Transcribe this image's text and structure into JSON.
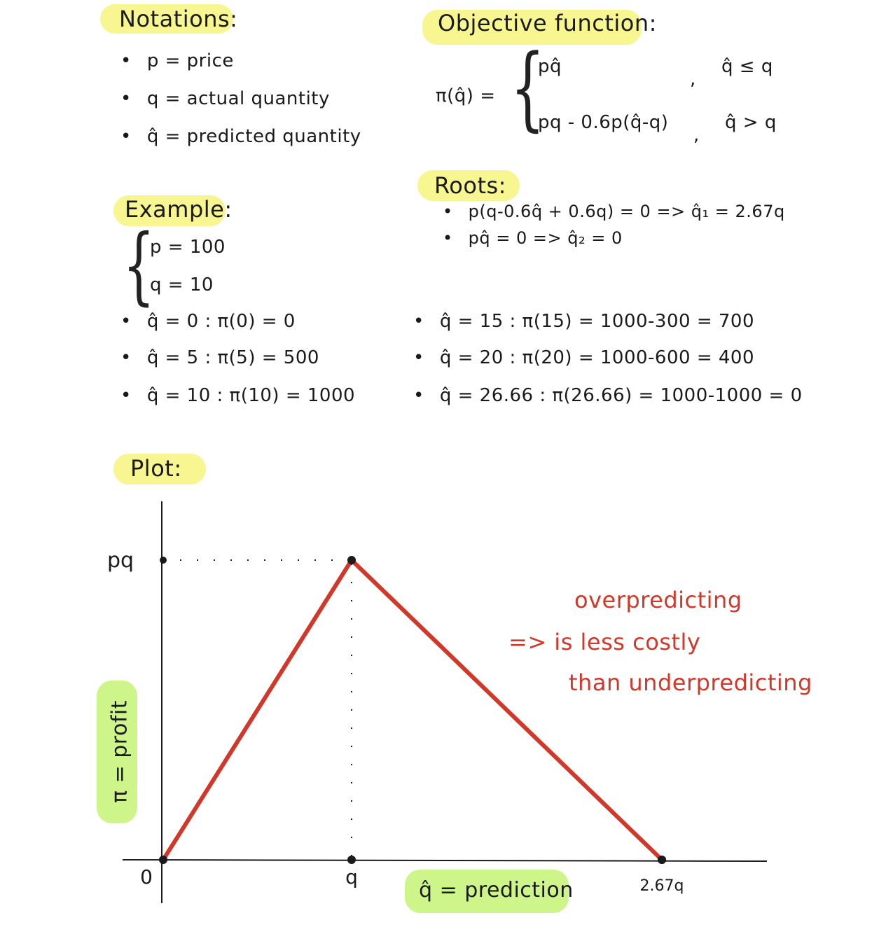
{
  "notations": {
    "heading": "Notations:",
    "items": [
      "p = price",
      "q = actual quantity",
      "q̂ = predicted quantity"
    ]
  },
  "objective": {
    "heading": "Objective function:",
    "lhs": "π(q̂) =",
    "case1_expr": "pq̂",
    "case1_cond": "q̂ ≤ q",
    "case2_expr": "pq - 0.6p(q̂-q)",
    "case2_cond": "q̂ > q"
  },
  "roots": {
    "heading": "Roots:",
    "items": [
      "p(q-0.6q̂ + 0.6q) = 0  =>  q̂₁ = 2.67q",
      "pq̂ = 0  =>  q̂₂ = 0"
    ]
  },
  "example": {
    "heading": "Example:",
    "given": [
      "p = 100",
      "q = 10"
    ],
    "left_items": [
      "q̂ = 0 :  π(0) = 0",
      "q̂ = 5 :  π(5) = 500",
      "q̂ = 10 :  π(10) = 1000"
    ],
    "right_items": [
      "q̂ = 15 :  π(15) = 1000-300 = 700",
      "q̂ = 20 :  π(20) = 1000-600 = 400",
      "q̂ = 26.66 :  π(26.66) = 1000-1000 = 0"
    ]
  },
  "plot": {
    "heading": "Plot:",
    "annotation": [
      "overpredicting",
      "=> is less costly",
      "than underpredicting"
    ],
    "colors": {
      "curve": "#d2382a",
      "annotation": "#d2382a",
      "axes": "#1a1a1a"
    }
  },
  "chart_data": {
    "type": "line",
    "x": [
      "0",
      "q",
      "2.67q"
    ],
    "series": [
      {
        "values": [
          0,
          1,
          0
        ]
      }
    ],
    "x_tick_labels": [
      "0",
      "q",
      "2.67q"
    ],
    "y_tick_labels": [
      "pq"
    ],
    "xlabel": "q̂ = prediction",
    "ylabel": "π = profit",
    "grid": false,
    "guides": "dotted lines from peak to each axis"
  }
}
